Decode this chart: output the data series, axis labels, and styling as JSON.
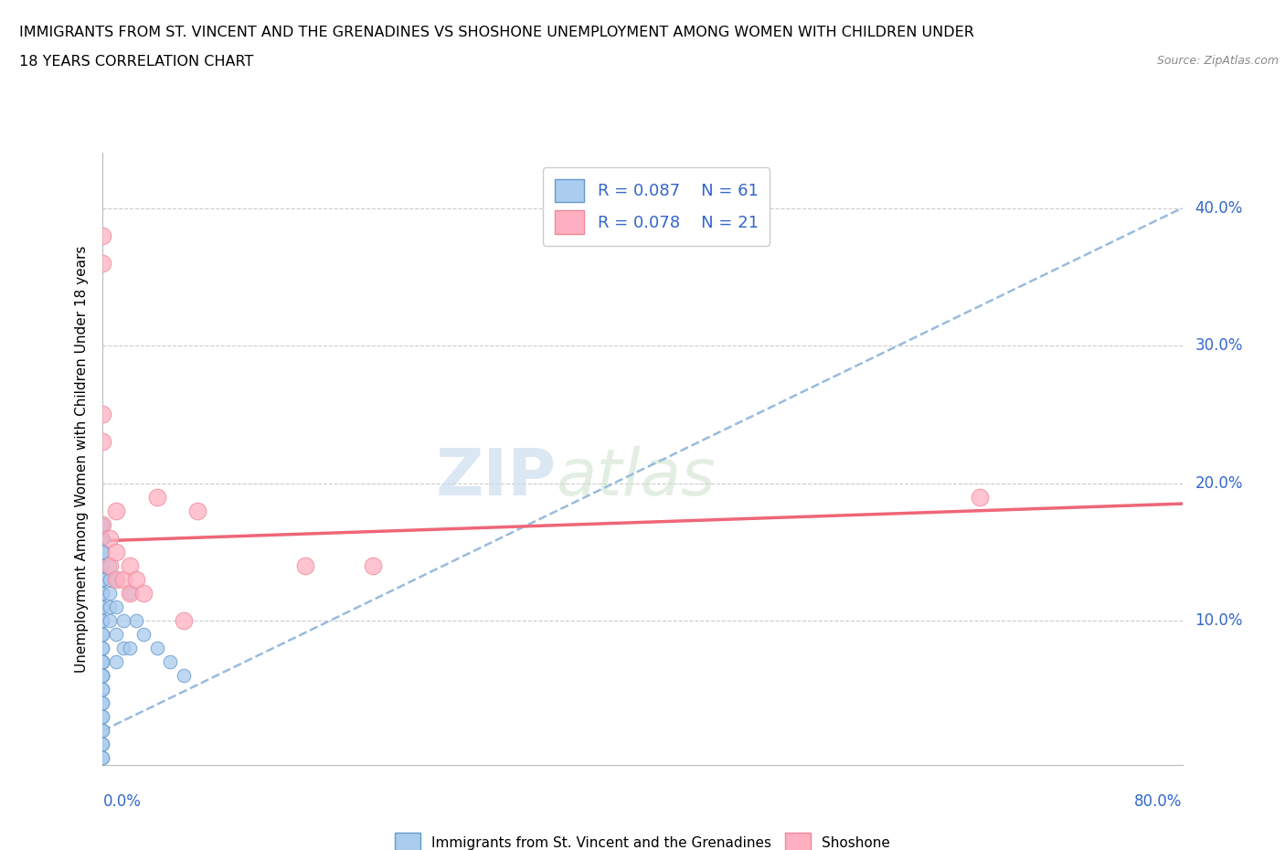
{
  "title_line1": "IMMIGRANTS FROM ST. VINCENT AND THE GRENADINES VS SHOSHONE UNEMPLOYMENT AMONG WOMEN WITH CHILDREN UNDER",
  "title_line2": "18 YEARS CORRELATION CHART",
  "source": "Source: ZipAtlas.com",
  "xlabel_bottom_left": "0.0%",
  "xlabel_bottom_right": "80.0%",
  "ylabel": "Unemployment Among Women with Children Under 18 years",
  "ytick_labels": [
    "0.0%",
    "10.0%",
    "20.0%",
    "30.0%",
    "40.0%"
  ],
  "ytick_values": [
    0.0,
    0.1,
    0.2,
    0.3,
    0.4
  ],
  "xlim": [
    0.0,
    0.8
  ],
  "ylim": [
    -0.005,
    0.44
  ],
  "grid_color": "#cccccc",
  "watermark_zip": "ZIP",
  "watermark_atlas": "atlas",
  "legend_r1": "R = 0.087",
  "legend_n1": "N = 61",
  "legend_r2": "R = 0.078",
  "legend_n2": "N = 21",
  "blue_scatter_face": "#aaccee",
  "blue_scatter_edge": "#6699cc",
  "pink_scatter_face": "#ffb0c0",
  "pink_scatter_edge": "#ee8899",
  "trend_blue_color": "#99bbdd",
  "trend_pink_color": "#ee6677",
  "legend_text_color": "#3366cc",
  "blue_points_x": [
    0.0,
    0.0,
    0.0,
    0.0,
    0.0,
    0.0,
    0.0,
    0.0,
    0.0,
    0.0,
    0.0,
    0.0,
    0.0,
    0.0,
    0.0,
    0.0,
    0.0,
    0.0,
    0.0,
    0.0,
    0.0,
    0.0,
    0.0,
    0.0,
    0.0,
    0.0,
    0.0,
    0.0,
    0.0,
    0.0,
    0.0,
    0.0,
    0.0,
    0.0,
    0.0,
    0.0,
    0.0,
    0.0,
    0.0,
    0.0,
    0.0,
    0.0,
    0.0,
    0.005,
    0.005,
    0.005,
    0.005,
    0.005,
    0.01,
    0.01,
    0.01,
    0.01,
    0.015,
    0.015,
    0.02,
    0.02,
    0.025,
    0.03,
    0.04,
    0.05,
    0.06
  ],
  "blue_points_y": [
    0.0,
    0.0,
    0.01,
    0.01,
    0.02,
    0.02,
    0.03,
    0.03,
    0.04,
    0.04,
    0.05,
    0.05,
    0.06,
    0.06,
    0.06,
    0.07,
    0.07,
    0.07,
    0.08,
    0.08,
    0.09,
    0.09,
    0.1,
    0.1,
    0.11,
    0.11,
    0.12,
    0.12,
    0.13,
    0.13,
    0.14,
    0.14,
    0.15,
    0.15,
    0.16,
    0.16,
    0.16,
    0.17,
    0.17,
    0.17,
    0.17,
    0.16,
    0.15,
    0.14,
    0.13,
    0.12,
    0.11,
    0.1,
    0.13,
    0.11,
    0.09,
    0.07,
    0.1,
    0.08,
    0.12,
    0.08,
    0.1,
    0.09,
    0.08,
    0.07,
    0.06
  ],
  "pink_points_x": [
    0.0,
    0.0,
    0.0,
    0.0,
    0.0,
    0.005,
    0.005,
    0.01,
    0.01,
    0.01,
    0.015,
    0.02,
    0.02,
    0.025,
    0.03,
    0.04,
    0.06,
    0.07,
    0.65,
    0.15,
    0.2
  ],
  "pink_points_y": [
    0.38,
    0.36,
    0.25,
    0.23,
    0.17,
    0.16,
    0.14,
    0.18,
    0.15,
    0.13,
    0.13,
    0.14,
    0.12,
    0.13,
    0.12,
    0.19,
    0.1,
    0.18,
    0.19,
    0.14,
    0.14
  ],
  "blue_trend_x": [
    0.0,
    0.8
  ],
  "blue_trend_y": [
    0.02,
    0.4
  ],
  "pink_trend_x": [
    0.0,
    0.8
  ],
  "pink_trend_y": [
    0.158,
    0.185
  ]
}
